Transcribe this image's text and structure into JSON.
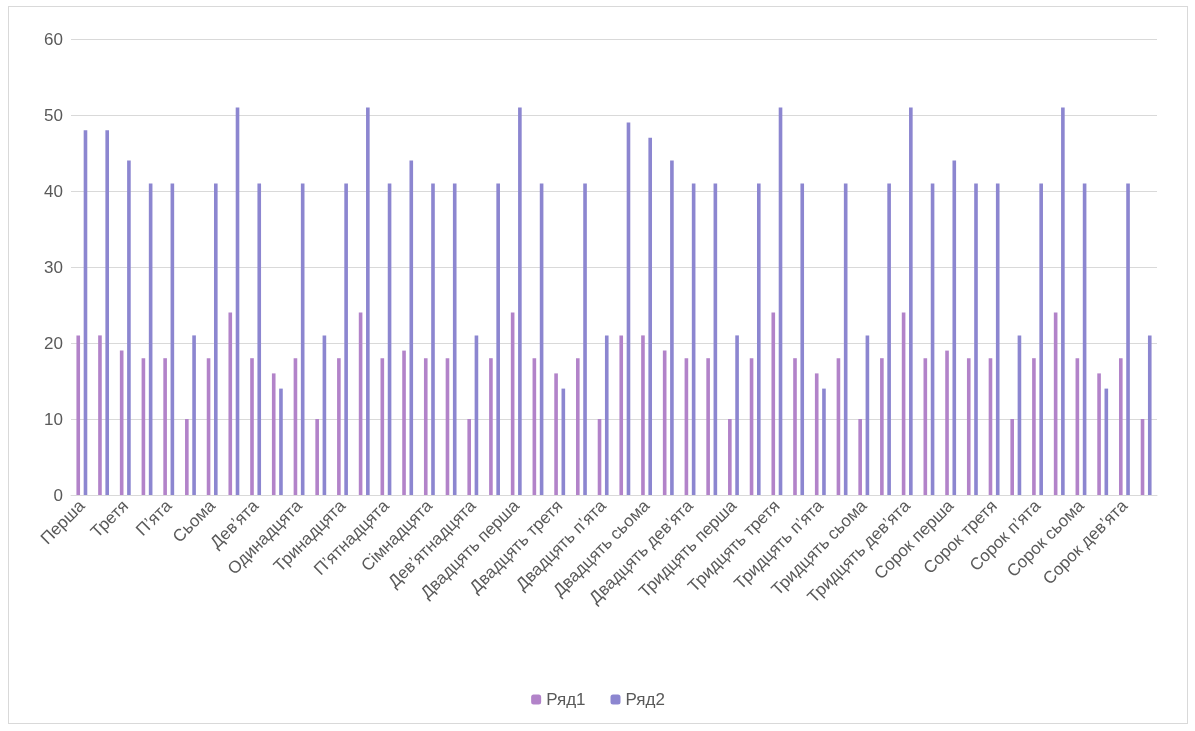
{
  "chart_data": {
    "type": "bar",
    "categories": [
      "Перша",
      null,
      "Третя",
      null,
      "П’ята",
      null,
      "Сьома",
      null,
      "Дев’ята",
      null,
      "Одинадцята",
      null,
      "Тринадцята",
      null,
      "П’ятнадцята",
      null,
      "Сімнадцята",
      null,
      "Дев’ятнадцята",
      null,
      "Двадцять перша",
      null,
      "Двадцять третя",
      null,
      "Двадцять п’ята",
      null,
      "Двадцять сьома",
      null,
      "Двадцять дев’ята",
      null,
      "Тридцять перша",
      null,
      "Тридцять третя",
      null,
      "Тридцять п’ята",
      null,
      "Тридцять сьома",
      null,
      "Тридцять дев’ята",
      null,
      "Сорок перша",
      null,
      "Сорок третя",
      null,
      "Сорок п’ята",
      null,
      "Сорок сьома",
      null,
      "Сорок дев’ята",
      null
    ],
    "series": [
      {
        "name": "Ряд1",
        "color": "#b283c9",
        "values": [
          21,
          21,
          19,
          18,
          18,
          10,
          18,
          24,
          18,
          16,
          18,
          10,
          18,
          24,
          18,
          19,
          18,
          18,
          10,
          18,
          24,
          18,
          16,
          18,
          10,
          21,
          21,
          19,
          18,
          18,
          10,
          18,
          24,
          18,
          16,
          18,
          10,
          18,
          24,
          18,
          19,
          18,
          18,
          10,
          18,
          24,
          18,
          16,
          18,
          10
        ]
      },
      {
        "name": "Ряд2",
        "color": "#8c86d0",
        "values": [
          48,
          48,
          44,
          41,
          41,
          21,
          41,
          51,
          41,
          14,
          41,
          21,
          41,
          51,
          41,
          44,
          41,
          41,
          21,
          41,
          51,
          41,
          14,
          41,
          21,
          49,
          47,
          44,
          41,
          41,
          21,
          41,
          51,
          41,
          14,
          41,
          21,
          41,
          51,
          41,
          44,
          41,
          41,
          21,
          41,
          51,
          41,
          14,
          41,
          21
        ]
      }
    ],
    "ylim": [
      0,
      60
    ],
    "yticks": [
      0,
      10,
      20,
      30,
      40,
      50,
      60
    ],
    "grid": "y",
    "legend": "bottom"
  }
}
